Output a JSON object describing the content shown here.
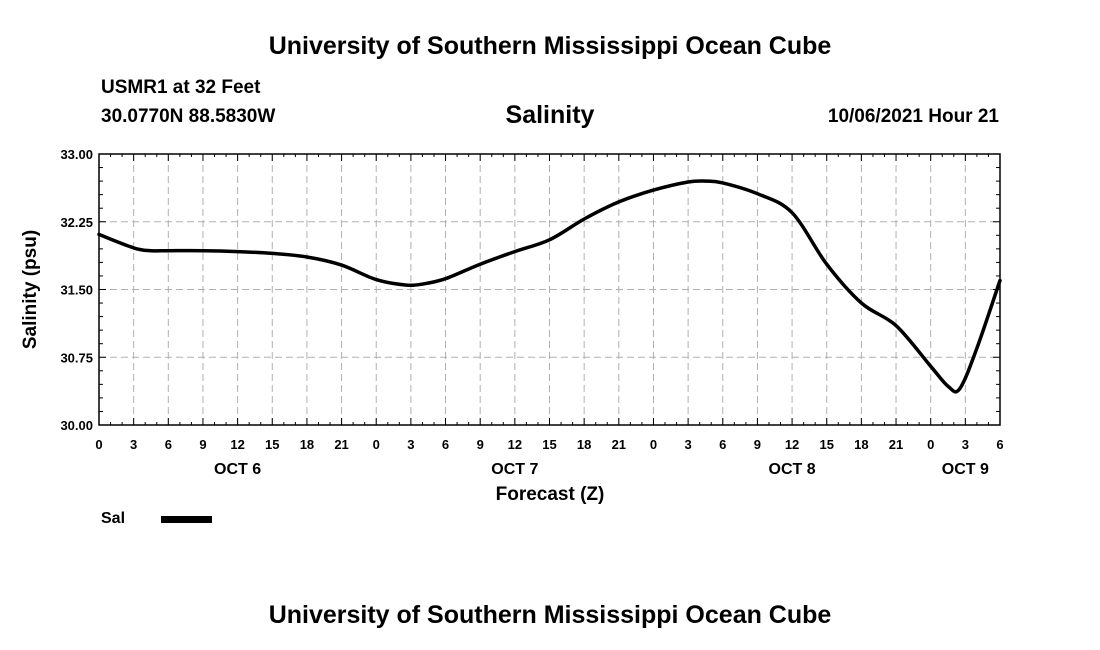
{
  "header": {
    "title": "University of Southern Mississippi Ocean Cube",
    "station": "USMR1 at 32 Feet",
    "coordinates": "30.0770N  88.5830W",
    "variable": "Salinity",
    "datetime": "10/06/2021 Hour 21"
  },
  "footer": {
    "title": "University of Southern Mississippi Ocean Cube"
  },
  "legend": {
    "label": "Sal",
    "color": "#000000"
  },
  "chart_data": {
    "type": "line",
    "title": "Salinity",
    "xlabel": "Forecast (Z)",
    "ylabel": "Salinity (psu)",
    "xlim": [
      0,
      78
    ],
    "ylim": [
      30.0,
      33.0
    ],
    "yticks": [
      "30.00",
      "30.75",
      "31.50",
      "32.25",
      "33.00"
    ],
    "ytick_values": [
      30.0,
      30.75,
      31.5,
      32.25,
      33.0
    ],
    "xticks": [
      0,
      3,
      6,
      9,
      12,
      15,
      18,
      21,
      24,
      27,
      30,
      33,
      36,
      39,
      42,
      45,
      48,
      51,
      54,
      57,
      60,
      63,
      66,
      69,
      72,
      75,
      78
    ],
    "xtick_labels": [
      "0",
      "3",
      "6",
      "9",
      "12",
      "15",
      "18",
      "21",
      "0",
      "3",
      "6",
      "9",
      "12",
      "15",
      "18",
      "21",
      "0",
      "3",
      "6",
      "9",
      "12",
      "15",
      "18",
      "21",
      "0",
      "3",
      "6"
    ],
    "date_labels": [
      {
        "label": "OCT 6",
        "x": 12
      },
      {
        "label": "OCT 7",
        "x": 36
      },
      {
        "label": "OCT 8",
        "x": 60
      },
      {
        "label": "OCT 9",
        "x": 75
      }
    ],
    "grid": true,
    "series": [
      {
        "name": "Sal",
        "x": [
          0,
          3,
          4.5,
          6,
          9,
          12,
          15,
          18,
          21,
          24,
          26.5,
          28,
          30,
          33,
          36,
          39,
          42,
          45,
          48,
          51,
          52.5,
          54,
          57,
          60,
          63,
          66,
          69,
          72,
          73.5,
          74.5,
          76,
          78
        ],
        "values": [
          32.11,
          31.96,
          31.93,
          31.93,
          31.93,
          31.92,
          31.9,
          31.86,
          31.77,
          31.61,
          31.55,
          31.56,
          31.62,
          31.78,
          31.92,
          32.05,
          32.28,
          32.47,
          32.6,
          32.69,
          32.7,
          32.68,
          32.56,
          32.35,
          31.78,
          31.35,
          31.1,
          30.65,
          30.43,
          30.4,
          30.85,
          31.6
        ]
      }
    ]
  }
}
